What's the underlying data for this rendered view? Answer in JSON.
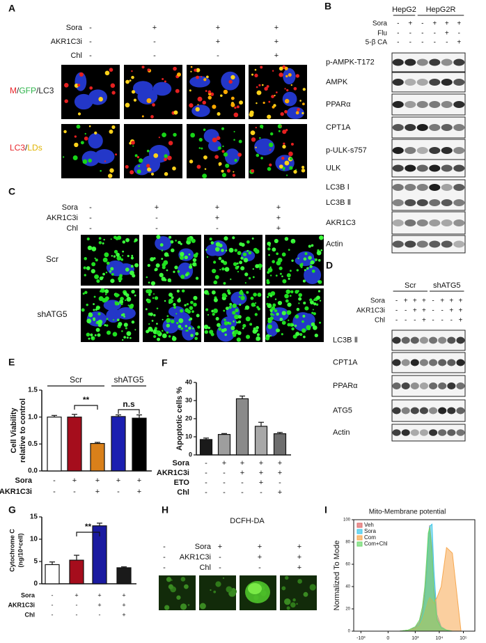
{
  "panels": {
    "A": {
      "label": "A",
      "conditions": [
        {
          "name": "Sora",
          "signs": [
            "-",
            "+",
            "+",
            "+"
          ]
        },
        {
          "name": "AKR1C3i",
          "signs": [
            "-",
            "-",
            "+",
            "+"
          ]
        },
        {
          "name": "Chl",
          "signs": [
            "-",
            "-",
            "-",
            "+"
          ]
        }
      ],
      "rows": [
        {
          "parts": [
            {
              "text": "M",
              "color": "#e8262b"
            },
            {
              "text": "/",
              "color": "#222222"
            },
            {
              "text": "GFP",
              "color": "#2db34a"
            },
            {
              "text": "/LC3",
              "color": "#222222"
            }
          ]
        },
        {
          "parts": [
            {
              "text": "LC3",
              "color": "#e8262b"
            },
            {
              "text": "/",
              "color": "#222222"
            },
            {
              "text": "LDs",
              "color": "#e0b400"
            }
          ]
        }
      ]
    },
    "B": {
      "label": "B",
      "groups": [
        "HepG2",
        "HepG2R"
      ],
      "conditions": [
        {
          "name": "Sora",
          "signs": [
            "-",
            "+",
            "-",
            "+",
            "+",
            "+"
          ]
        },
        {
          "name": "Flu",
          "signs": [
            "-",
            "-",
            "-",
            "-",
            "+",
            "-"
          ]
        },
        {
          "name": "5-β CA",
          "signs": [
            "-",
            "-",
            "-",
            "-",
            "-",
            "+"
          ]
        }
      ],
      "rows": [
        {
          "labels": [
            "p-AMPK-T172"
          ]
        },
        {
          "labels": [
            "AMPK"
          ]
        },
        {
          "labels": [
            "PPARα"
          ]
        },
        {
          "labels": [
            "CPT1A"
          ]
        },
        {
          "labels": [
            "p-ULK-s757"
          ]
        },
        {
          "labels": [
            "ULK"
          ]
        },
        {
          "labels": [
            "LC3B Ⅰ",
            "LC3B Ⅱ"
          ]
        },
        {
          "labels": [
            "AKR1C3"
          ]
        },
        {
          "labels": [
            "Actin"
          ]
        }
      ]
    },
    "C": {
      "label": "C",
      "conditions": [
        {
          "name": "Sora",
          "signs": [
            "-",
            "+",
            "+",
            "+"
          ]
        },
        {
          "name": "AKR1C3i",
          "signs": [
            "-",
            "-",
            "+",
            "+"
          ]
        },
        {
          "name": "Chl",
          "signs": [
            "-",
            "-",
            "-",
            "+"
          ]
        }
      ],
      "rows": [
        "Scr",
        "shATG5"
      ]
    },
    "D": {
      "label": "D",
      "groups": [
        "Scr",
        "shATG5"
      ],
      "conditions": [
        {
          "name": "Sora",
          "signs": [
            "-",
            "+",
            "+",
            "+",
            "-",
            "+",
            "+",
            "+"
          ]
        },
        {
          "name": "AKR1C3i",
          "signs": [
            "-",
            "-",
            "+",
            "+",
            "-",
            "-",
            "+",
            "+"
          ]
        },
        {
          "name": "Chl",
          "signs": [
            "-",
            "-",
            "-",
            "+",
            "-",
            "-",
            "-",
            "+"
          ]
        }
      ],
      "rows": [
        {
          "labels": [
            "LC3B Ⅱ"
          ]
        },
        {
          "labels": [
            "CPT1A"
          ]
        },
        {
          "labels": [
            "PPARα"
          ]
        },
        {
          "labels": [
            "ATG5"
          ]
        },
        {
          "labels": [
            "Actin"
          ]
        }
      ]
    },
    "H": {
      "label": "H",
      "title": "DCFH-DA",
      "conditions": [
        {
          "name": "Sora",
          "signs": [
            "-",
            "+",
            "+",
            "+"
          ]
        },
        {
          "name": "AKR1C3i",
          "signs": [
            "-",
            "-",
            "+",
            "+"
          ]
        },
        {
          "name": "Chl",
          "signs": [
            "-",
            "-",
            "-",
            "+"
          ]
        }
      ]
    }
  },
  "chart_data": [
    {
      "type": "bar",
      "panel_label": "E",
      "y_label": [
        "Cell Viability",
        "relative to control"
      ],
      "values": [
        1.0,
        1.0,
        0.51,
        1.01,
        0.98
      ],
      "errors": [
        0.03,
        0.05,
        0.02,
        0.03,
        0.06
      ],
      "colors": [
        "#ffffff",
        "#a50d1c",
        "#d9801a",
        "#1b1fb0",
        "#000000"
      ],
      "ylim": [
        0,
        1.5
      ],
      "yticks": [
        {
          "value": 0,
          "label": "0.0"
        },
        {
          "value": 0.5,
          "label": "0.5"
        },
        {
          "value": 1.0,
          "label": "1.0"
        },
        {
          "value": 1.5,
          "label": "1.5"
        }
      ],
      "groups": [
        "Scr",
        "shATG5"
      ],
      "annotations": [
        "**",
        "n.s"
      ],
      "conditions": [
        {
          "name": "Sora",
          "signs": [
            "-",
            "+",
            "+",
            "+",
            "+"
          ]
        },
        {
          "name": "AKR1C3i",
          "signs": [
            "-",
            "-",
            "+",
            "-",
            "+"
          ]
        }
      ]
    },
    {
      "type": "bar",
      "panel_label": "F",
      "y_label": [
        "Apoptotic cells %"
      ],
      "values": [
        8.5,
        11.3,
        31,
        15.8,
        11.7
      ],
      "errors": [
        0.8,
        0.5,
        1.5,
        2.2,
        0.7
      ],
      "colors": [
        "#1a1a1a",
        "#9e9e9e",
        "#8a8a8a",
        "#a8a8a8",
        "#6e6e6e"
      ],
      "ylim": [
        0,
        40
      ],
      "yticks": [
        0,
        10,
        20,
        30,
        40
      ],
      "groups": [],
      "annotations": [],
      "conditions": [
        {
          "name": "Sora",
          "signs": [
            "-",
            "+",
            "+",
            "+",
            "+"
          ]
        },
        {
          "name": "AKR1C3i",
          "signs": [
            "-",
            "-",
            "+",
            "+",
            "+"
          ]
        },
        {
          "name": "ETO",
          "signs": [
            "-",
            "-",
            "-",
            "+",
            "-"
          ]
        },
        {
          "name": "Chl",
          "signs": [
            "-",
            "-",
            "-",
            "-",
            "+"
          ]
        }
      ]
    },
    {
      "type": "bar",
      "panel_label": "G",
      "y_label": [
        "Cytochrome C",
        "(ng/10⁴cell)"
      ],
      "values": [
        4.3,
        5.3,
        13,
        3.6
      ],
      "errors": [
        0.6,
        1.1,
        0.6,
        0.2
      ],
      "colors": [
        "#ffffff",
        "#a50d1c",
        "#1a1aa0",
        "#1a1a1a"
      ],
      "ylim": [
        0,
        15
      ],
      "yticks": [
        0,
        5,
        10,
        15
      ],
      "groups": [],
      "annotations": [
        "**"
      ],
      "conditions": [
        {
          "name": "Sora",
          "signs": [
            "-",
            "+",
            "+",
            "+"
          ]
        },
        {
          "name": "AKR1C3i",
          "signs": [
            "-",
            "-",
            "+",
            "+"
          ]
        },
        {
          "name": "Chl",
          "signs": [
            "-",
            "-",
            "-",
            "+"
          ]
        }
      ]
    },
    {
      "type": "area",
      "panel_label": "I",
      "title": "Mito-Membrane potential",
      "y_label": "Normalized To Mode",
      "x": [
        200,
        500,
        1000,
        1500,
        2000,
        2500,
        3000,
        3500,
        4000,
        5000,
        6000,
        8000,
        12000,
        20000,
        35000,
        80000
      ],
      "series": [
        {
          "name": "Veh",
          "color": "#e06a6a",
          "values": [
            0,
            1,
            3,
            8,
            18,
            35,
            60,
            85,
            95,
            75,
            40,
            12,
            3,
            1,
            0,
            0
          ]
        },
        {
          "name": "Sora",
          "color": "#3ec8e8",
          "values": [
            0,
            1,
            2,
            6,
            14,
            28,
            50,
            78,
            94,
            96,
            55,
            15,
            4,
            1,
            0,
            0
          ]
        },
        {
          "name": "Com",
          "color": "#f7a850",
          "values": [
            0,
            1,
            2,
            5,
            10,
            16,
            22,
            27,
            30,
            28,
            25,
            30,
            40,
            75,
            70,
            0
          ]
        },
        {
          "name": "Com+Chl",
          "color": "#6ed86e",
          "values": [
            0,
            1,
            4,
            10,
            22,
            40,
            65,
            88,
            93,
            70,
            35,
            10,
            3,
            1,
            0,
            0
          ]
        }
      ],
      "xscale": "biexponential",
      "xlim": [
        -2000,
        300000
      ],
      "xticks": [
        {
          "value": -1000,
          "label": "-10³"
        },
        {
          "value": 0,
          "label": "0"
        },
        {
          "value": 1000,
          "label": "10³"
        },
        {
          "value": 10000,
          "label": "10⁴"
        },
        {
          "value": 100000,
          "label": "10⁵"
        }
      ],
      "ylim": [
        0,
        100
      ],
      "yticks": [
        0,
        20,
        40,
        60,
        80,
        100
      ],
      "legend": "top-left"
    }
  ]
}
